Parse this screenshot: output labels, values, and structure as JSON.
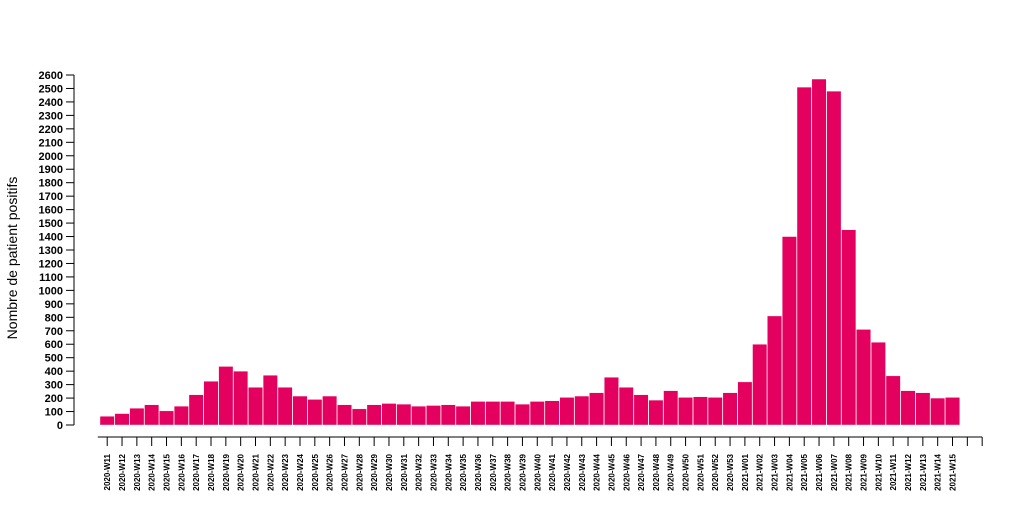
{
  "chart_data": {
    "type": "bar",
    "title": "",
    "xlabel": "",
    "ylabel": "Nombre de patient positifs",
    "ylim": [
      0,
      2600
    ],
    "ytick_step": 100,
    "grid": false,
    "bar_color": "#e3005e",
    "categories": [
      "2020-W11",
      "2020-W12",
      "2020-W13",
      "2020-W14",
      "2020-W15",
      "2020-W16",
      "2020-W17",
      "2020-W18",
      "2020-W19",
      "2020-W20",
      "2020-W21",
      "2020-W22",
      "2020-W23",
      "2020-W24",
      "2020-W25",
      "2020-W26",
      "2020-W27",
      "2020-W28",
      "2020-W29",
      "2020-W30",
      "2020-W31",
      "2020-W32",
      "2020-W33",
      "2020-W34",
      "2020-W35",
      "2020-W36",
      "2020-W37",
      "2020-W38",
      "2020-W39",
      "2020-W40",
      "2020-W41",
      "2020-W42",
      "2020-W43",
      "2020-W44",
      "2020-W45",
      "2020-W46",
      "2020-W47",
      "2020-W48",
      "2020-W49",
      "2020-W50",
      "2020-W51",
      "2020-W52",
      "2020-W53",
      "2021-W01",
      "2021-W02",
      "2021-W03",
      "2021-W04",
      "2021-W05",
      "2021-W06",
      "2021-W07",
      "2021-W08",
      "2021-W09",
      "2021-W10",
      "2021-W11",
      "2021-W12",
      "2021-W13",
      "2021-W14",
      "2021-W15"
    ],
    "values": [
      65,
      85,
      125,
      150,
      105,
      140,
      225,
      325,
      435,
      400,
      280,
      370,
      280,
      215,
      190,
      215,
      150,
      120,
      150,
      160,
      155,
      140,
      145,
      150,
      140,
      175,
      175,
      175,
      155,
      175,
      180,
      205,
      215,
      240,
      355,
      280,
      225,
      185,
      255,
      205,
      210,
      205,
      240,
      320,
      600,
      810,
      1400,
      2510,
      2570,
      2480,
      1450,
      710,
      615,
      365,
      255,
      240,
      200,
      205
    ]
  }
}
